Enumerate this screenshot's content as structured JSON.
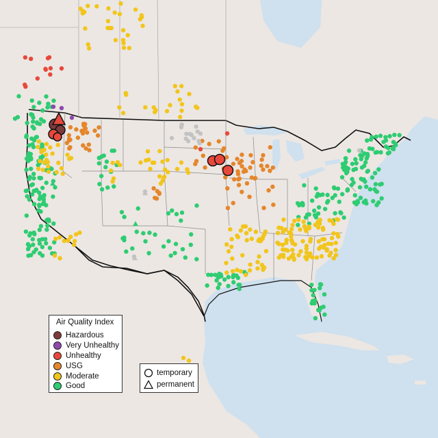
{
  "legend": {
    "title": "Air Quality Index",
    "categories": [
      {
        "label": "Hazardous",
        "color": "#7e3b3b"
      },
      {
        "label": "Very Unhealthy",
        "color": "#8e4aad"
      },
      {
        "label": "Unhealthy",
        "color": "#e8483c"
      },
      {
        "label": "USG",
        "color": "#e5862b"
      },
      {
        "label": "Moderate",
        "color": "#f2c51c"
      },
      {
        "label": "Good",
        "color": "#2fcc72"
      }
    ]
  },
  "shape_legend": {
    "items": [
      {
        "label": "temporary",
        "icon": "circle-outline-icon"
      },
      {
        "label": "permanent",
        "icon": "triangle-outline-icon"
      }
    ]
  },
  "colors": {
    "water": "#cfe0ee",
    "land": "#ece7e3",
    "no_data": "#c3c3c3"
  }
}
